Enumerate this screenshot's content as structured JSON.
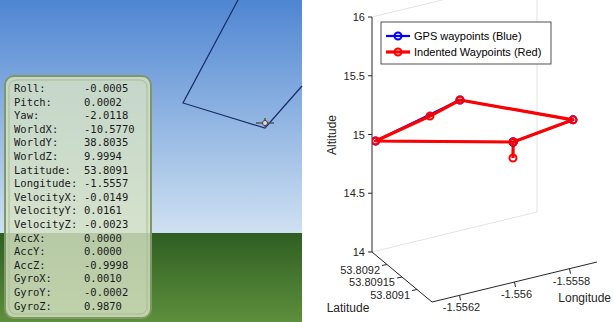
{
  "panel": {
    "rows": [
      {
        "label": "Roll:",
        "value": "-0.0005"
      },
      {
        "label": "Pitch:",
        "value": "0.0002"
      },
      {
        "label": "Yaw:",
        "value": "-2.0118"
      },
      {
        "label": "WorldX:",
        "value": "-10.5770"
      },
      {
        "label": "WorldY:",
        "value": "38.8035"
      },
      {
        "label": "WorldZ:",
        "value": "9.9994"
      },
      {
        "label": "Latitude:",
        "value": "53.8091"
      },
      {
        "label": "Longitude:",
        "value": "-1.5557"
      },
      {
        "label": "VelocityX:",
        "value": "-0.0149"
      },
      {
        "label": "VelocityY:",
        "value": "0.0161"
      },
      {
        "label": "VelocityZ:",
        "value": "-0.0023"
      },
      {
        "label": "AccX:",
        "value": "0.0000"
      },
      {
        "label": "AccY:",
        "value": "0.0000"
      },
      {
        "label": "AccZ:",
        "value": "-0.9998"
      },
      {
        "label": "GyroX:",
        "value": "0.0010"
      },
      {
        "label": "GyroY:",
        "value": "-0.0002"
      },
      {
        "label": "GyroZ:",
        "value": "0.9870"
      }
    ]
  },
  "chart_data": {
    "type": "line3d",
    "xlabel": "Latitude",
    "ylabel": "Longitude",
    "zlabel": "Altitude",
    "xlim": [
      53.80905,
      53.80925
    ],
    "xticks": [
      53.8091,
      53.80915,
      53.8092
    ],
    "ylim": [
      -1.5563,
      -1.5557
    ],
    "yticks": [
      -1.5562,
      -1.556,
      -1.5558
    ],
    "zlim": [
      14,
      16
    ],
    "zticks": [
      14,
      14.5,
      15,
      15.5,
      16
    ],
    "legend": "upper left",
    "marker": "circle",
    "series": [
      {
        "name": "GPS waypoints (Blue)",
        "color": "#0000ff",
        "x": [
          53.809157,
          53.809238,
          53.809218,
          53.809108,
          53.809157
        ],
        "y": [
          -1.555888,
          -1.5563,
          -1.556015,
          -1.555724,
          -1.555888
        ],
        "z": [
          14.9,
          14.97,
          15.2,
          15.1,
          14.9
        ]
      },
      {
        "name": "Indented Waypoints (Red)",
        "color": "#ff0000",
        "x": [
          53.809144,
          53.809157,
          53.809238,
          53.809209,
          53.809218,
          53.809108,
          53.809157
        ],
        "y": [
          -1.555903,
          -1.555888,
          -1.5563,
          -1.556134,
          -1.556015,
          -1.555724,
          -1.555888
        ],
        "z": [
          14.8,
          14.9,
          14.97,
          15.15,
          15.2,
          15.1,
          14.9
        ]
      }
    ]
  }
}
